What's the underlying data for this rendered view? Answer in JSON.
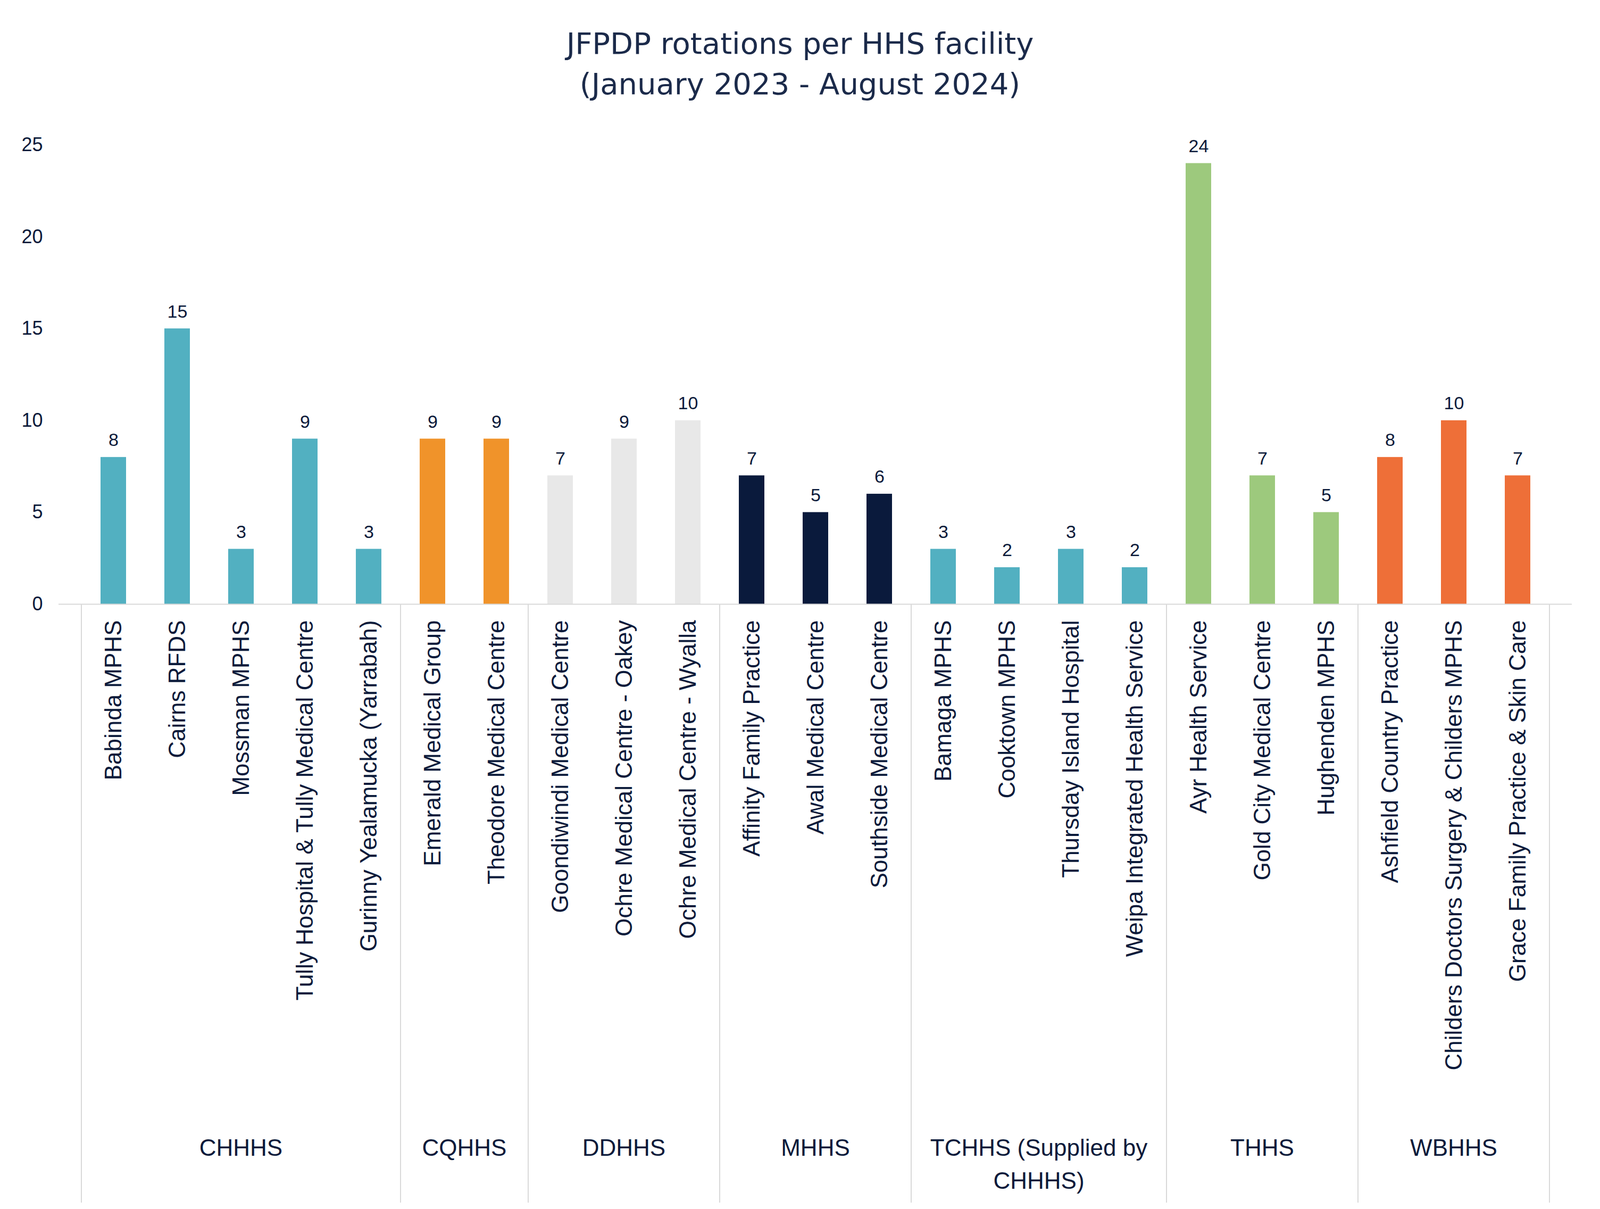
{
  "chart_data": {
    "type": "bar",
    "title": "JFPDP rotations per HHS facility",
    "subtitle": "(January 2023 - August 2024)",
    "categories": [
      "Babinda MPHS",
      "Cairns RFDS",
      "Mossman MPHS",
      "Tully Hospital & Tully Medical Centre",
      "Gurinny Yealamucka (Yarrabah)",
      "Emerald Medical Group",
      "Theodore Medical Centre",
      "Goondiwindi Medical Centre",
      "Ochre Medical Centre - Oakey",
      "Ochre Medical Centre - Wyalla",
      "Affinity Family Practice",
      "Awal Medical Centre",
      "Southside Medical Centre",
      "Bamaga MPHS",
      "Cooktown MPHS",
      "Thursday Island Hospital",
      "Weipa Integrated Health Service",
      "Ayr Health Service",
      "Gold City Medical Centre",
      "Hughenden MPHS",
      "Ashfield Country Practice",
      "Childers Doctors Surgery & Childers MPHS",
      "Grace Family Practice & Skin Care"
    ],
    "category_groups": [
      "CHHHS",
      "CHHHS",
      "CHHHS",
      "CHHHS",
      "CHHHS",
      "CQHHS",
      "CQHHS",
      "DDHHS",
      "DDHHS",
      "DDHHS",
      "MHHS",
      "MHHS",
      "MHHS",
      "TCHHS (Supplied by CHHHS)",
      "TCHHS (Supplied by CHHHS)",
      "TCHHS (Supplied by CHHHS)",
      "TCHHS (Supplied by CHHHS)",
      "THHS",
      "THHS",
      "THHS",
      "WBHHS",
      "WBHHS",
      "WBHHS"
    ],
    "values": [
      8,
      15,
      3,
      9,
      3,
      9,
      9,
      7,
      9,
      10,
      7,
      5,
      6,
      3,
      2,
      3,
      2,
      24,
      7,
      5,
      8,
      10,
      7
    ],
    "colors": [
      "#52b0c1",
      "#52b0c1",
      "#52b0c1",
      "#52b0c1",
      "#52b0c1",
      "#f0932a",
      "#f0932a",
      "#e8e8e8",
      "#e8e8e8",
      "#e8e8e8",
      "#0a1a3c",
      "#0a1a3c",
      "#0a1a3c",
      "#52b0c1",
      "#52b0c1",
      "#52b0c1",
      "#52b0c1",
      "#9dc97d",
      "#9dc97d",
      "#9dc97d",
      "#ee6f38",
      "#ee6f38",
      "#ee6f38"
    ],
    "ylim": [
      0,
      25
    ],
    "yticks": [
      0,
      5,
      10,
      15,
      20,
      25
    ],
    "grid": false,
    "data_labels": true
  }
}
